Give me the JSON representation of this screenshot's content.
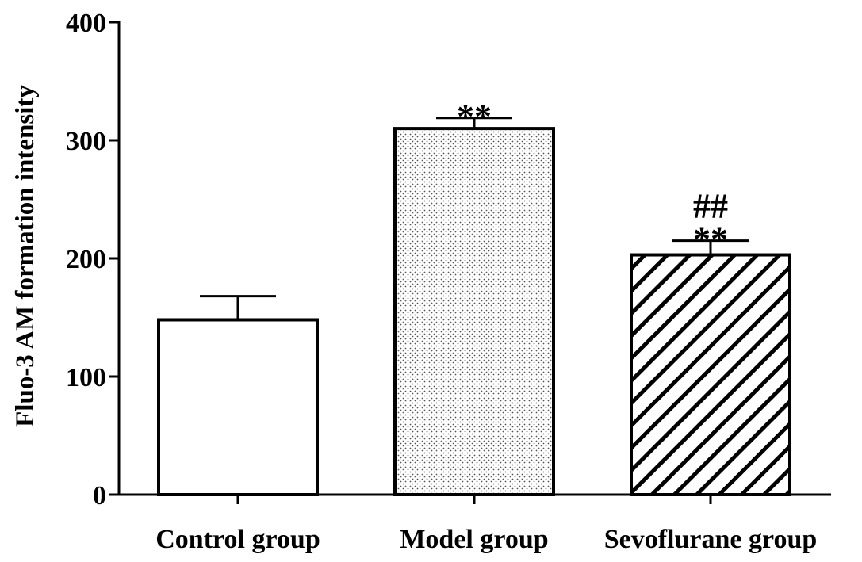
{
  "chart_data": {
    "type": "bar",
    "title": "",
    "xlabel": "",
    "ylabel": "Fluo-3 AM formation intensity",
    "ylim": [
      0,
      400
    ],
    "yticks": [
      "0",
      "100",
      "200",
      "300",
      "400"
    ],
    "categories": [
      "Control group",
      "Model group",
      "Sevoflurane group"
    ],
    "values": [
      148,
      310,
      203
    ],
    "errors": [
      20,
      9,
      12
    ],
    "patterns": [
      "solid-white",
      "dots",
      "diagonal-hatch"
    ],
    "annotations": [
      {
        "category": "Model group",
        "lines": [
          "**"
        ]
      },
      {
        "category": "Sevoflurane group",
        "lines": [
          "##",
          "**"
        ]
      }
    ],
    "grid": false
  }
}
